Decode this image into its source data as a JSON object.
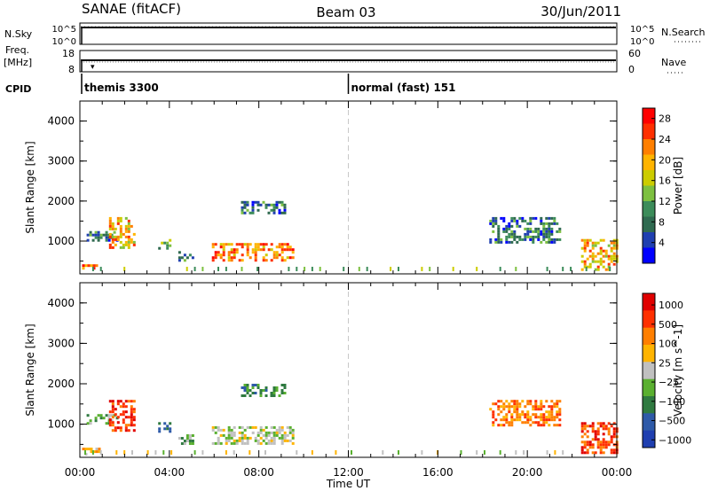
{
  "header": {
    "station": "SANAE (fitACF)",
    "beam": "Beam 03",
    "date": "30/Jun/2011"
  },
  "strips": {
    "nsky_label": "N.Sky",
    "nsky_ticks": [
      "10^5",
      "10^0"
    ],
    "nsearch_label": "N.Search",
    "nsearch_ticks": [
      "10^5",
      "10^0"
    ],
    "freq_label": "Freq.",
    "freq_unit": "[MHz]",
    "freq_ticks": [
      "18",
      "8"
    ],
    "nave_label": "Nave",
    "nave_ticks": [
      "60",
      "0"
    ],
    "cpid_label": "CPID",
    "cpid_segments": [
      {
        "label": "themis 3300",
        "start_hour": 0
      },
      {
        "label": "normal (fast) 151",
        "start_hour": 12
      }
    ]
  },
  "colors": {
    "power_scale": [
      "#0000ff",
      "#1f3fb0",
      "#2f6a50",
      "#3c8c5a",
      "#7dc040",
      "#cccc00",
      "#ffb400",
      "#ff7f00",
      "#ff3000",
      "#ff0000"
    ],
    "velocity_scale": [
      "#1f3fb0",
      "#2e5aa8",
      "#2f7a40",
      "#5ab030",
      "#c0c0c0",
      "#ffb400",
      "#ff7f00",
      "#ff3000",
      "#e00000"
    ]
  },
  "chart_data": [
    {
      "type": "heatmap",
      "name": "power",
      "xlabel": "",
      "ylabel": "Slant Range [km]",
      "xlim": [
        0,
        24
      ],
      "ylim": [
        180,
        4500
      ],
      "yticks": [
        "1000",
        "2000",
        "3000",
        "4000"
      ],
      "colorbar_label": "Power [dB]",
      "colorbar_ticks": [
        "4",
        "8",
        "12",
        "16",
        "20",
        "24",
        "28"
      ],
      "colorbar_range": [
        0,
        30
      ],
      "reference_line_hour": 12,
      "echo_regions": [
        {
          "t0": 0.1,
          "t1": 0.9,
          "r0": 250,
          "r1": 420,
          "level": 22
        },
        {
          "t0": 0.3,
          "t1": 1.7,
          "r0": 1050,
          "r1": 1250,
          "level": 6
        },
        {
          "t0": 1.3,
          "t1": 2.4,
          "r0": 850,
          "r1": 1600,
          "level": 18
        },
        {
          "t0": 3.5,
          "t1": 4.0,
          "r0": 850,
          "r1": 1050,
          "level": 10
        },
        {
          "t0": 4.4,
          "t1": 5.0,
          "r0": 500,
          "r1": 750,
          "level": 9
        },
        {
          "t0": 5.9,
          "t1": 9.5,
          "r0": 550,
          "r1": 950,
          "level": 20
        },
        {
          "t0": 7.2,
          "t1": 9.2,
          "r0": 1700,
          "r1": 2000,
          "level": 6
        },
        {
          "t0": 18.3,
          "t1": 21.5,
          "r0": 1000,
          "r1": 1600,
          "level": 7
        },
        {
          "t0": 22.4,
          "t1": 24.0,
          "r0": 300,
          "r1": 1050,
          "level": 19
        }
      ]
    },
    {
      "type": "heatmap",
      "name": "velocity",
      "xlabel": "Time UT",
      "ylabel": "Slant Range [km]",
      "xlim": [
        0,
        24
      ],
      "ylim": [
        180,
        4500
      ],
      "xticks": [
        "00:00",
        "04:00",
        "08:00",
        "12:00",
        "16:00",
        "20:00",
        "00:00"
      ],
      "yticks": [
        "1000",
        "2000",
        "3000",
        "4000"
      ],
      "colorbar_label": "Velocity [m s^-1]",
      "colorbar_ticks": [
        "1000",
        "500",
        "100",
        "25",
        "−25",
        "−100",
        "−500",
        "−1000"
      ],
      "reference_line_hour": 12,
      "echo_regions": [
        {
          "t0": 0.1,
          "t1": 0.9,
          "r0": 250,
          "r1": 420,
          "level": 5
        },
        {
          "t0": 0.3,
          "t1": 1.7,
          "r0": 1050,
          "r1": 1250,
          "level": 3
        },
        {
          "t0": 1.3,
          "t1": 2.4,
          "r0": 850,
          "r1": 1600,
          "level": 7
        },
        {
          "t0": 3.5,
          "t1": 4.0,
          "r0": 850,
          "r1": 1050,
          "level": 1
        },
        {
          "t0": 4.4,
          "t1": 5.0,
          "r0": 500,
          "r1": 750,
          "level": 3
        },
        {
          "t0": 5.9,
          "t1": 9.5,
          "r0": 550,
          "r1": 950,
          "level": 4
        },
        {
          "t0": 7.2,
          "t1": 9.2,
          "r0": 1700,
          "r1": 2000,
          "level": 2
        },
        {
          "t0": 18.3,
          "t1": 21.5,
          "r0": 1000,
          "r1": 1600,
          "level": 6
        },
        {
          "t0": 22.4,
          "t1": 24.0,
          "r0": 300,
          "r1": 1050,
          "level": 7
        }
      ]
    }
  ]
}
